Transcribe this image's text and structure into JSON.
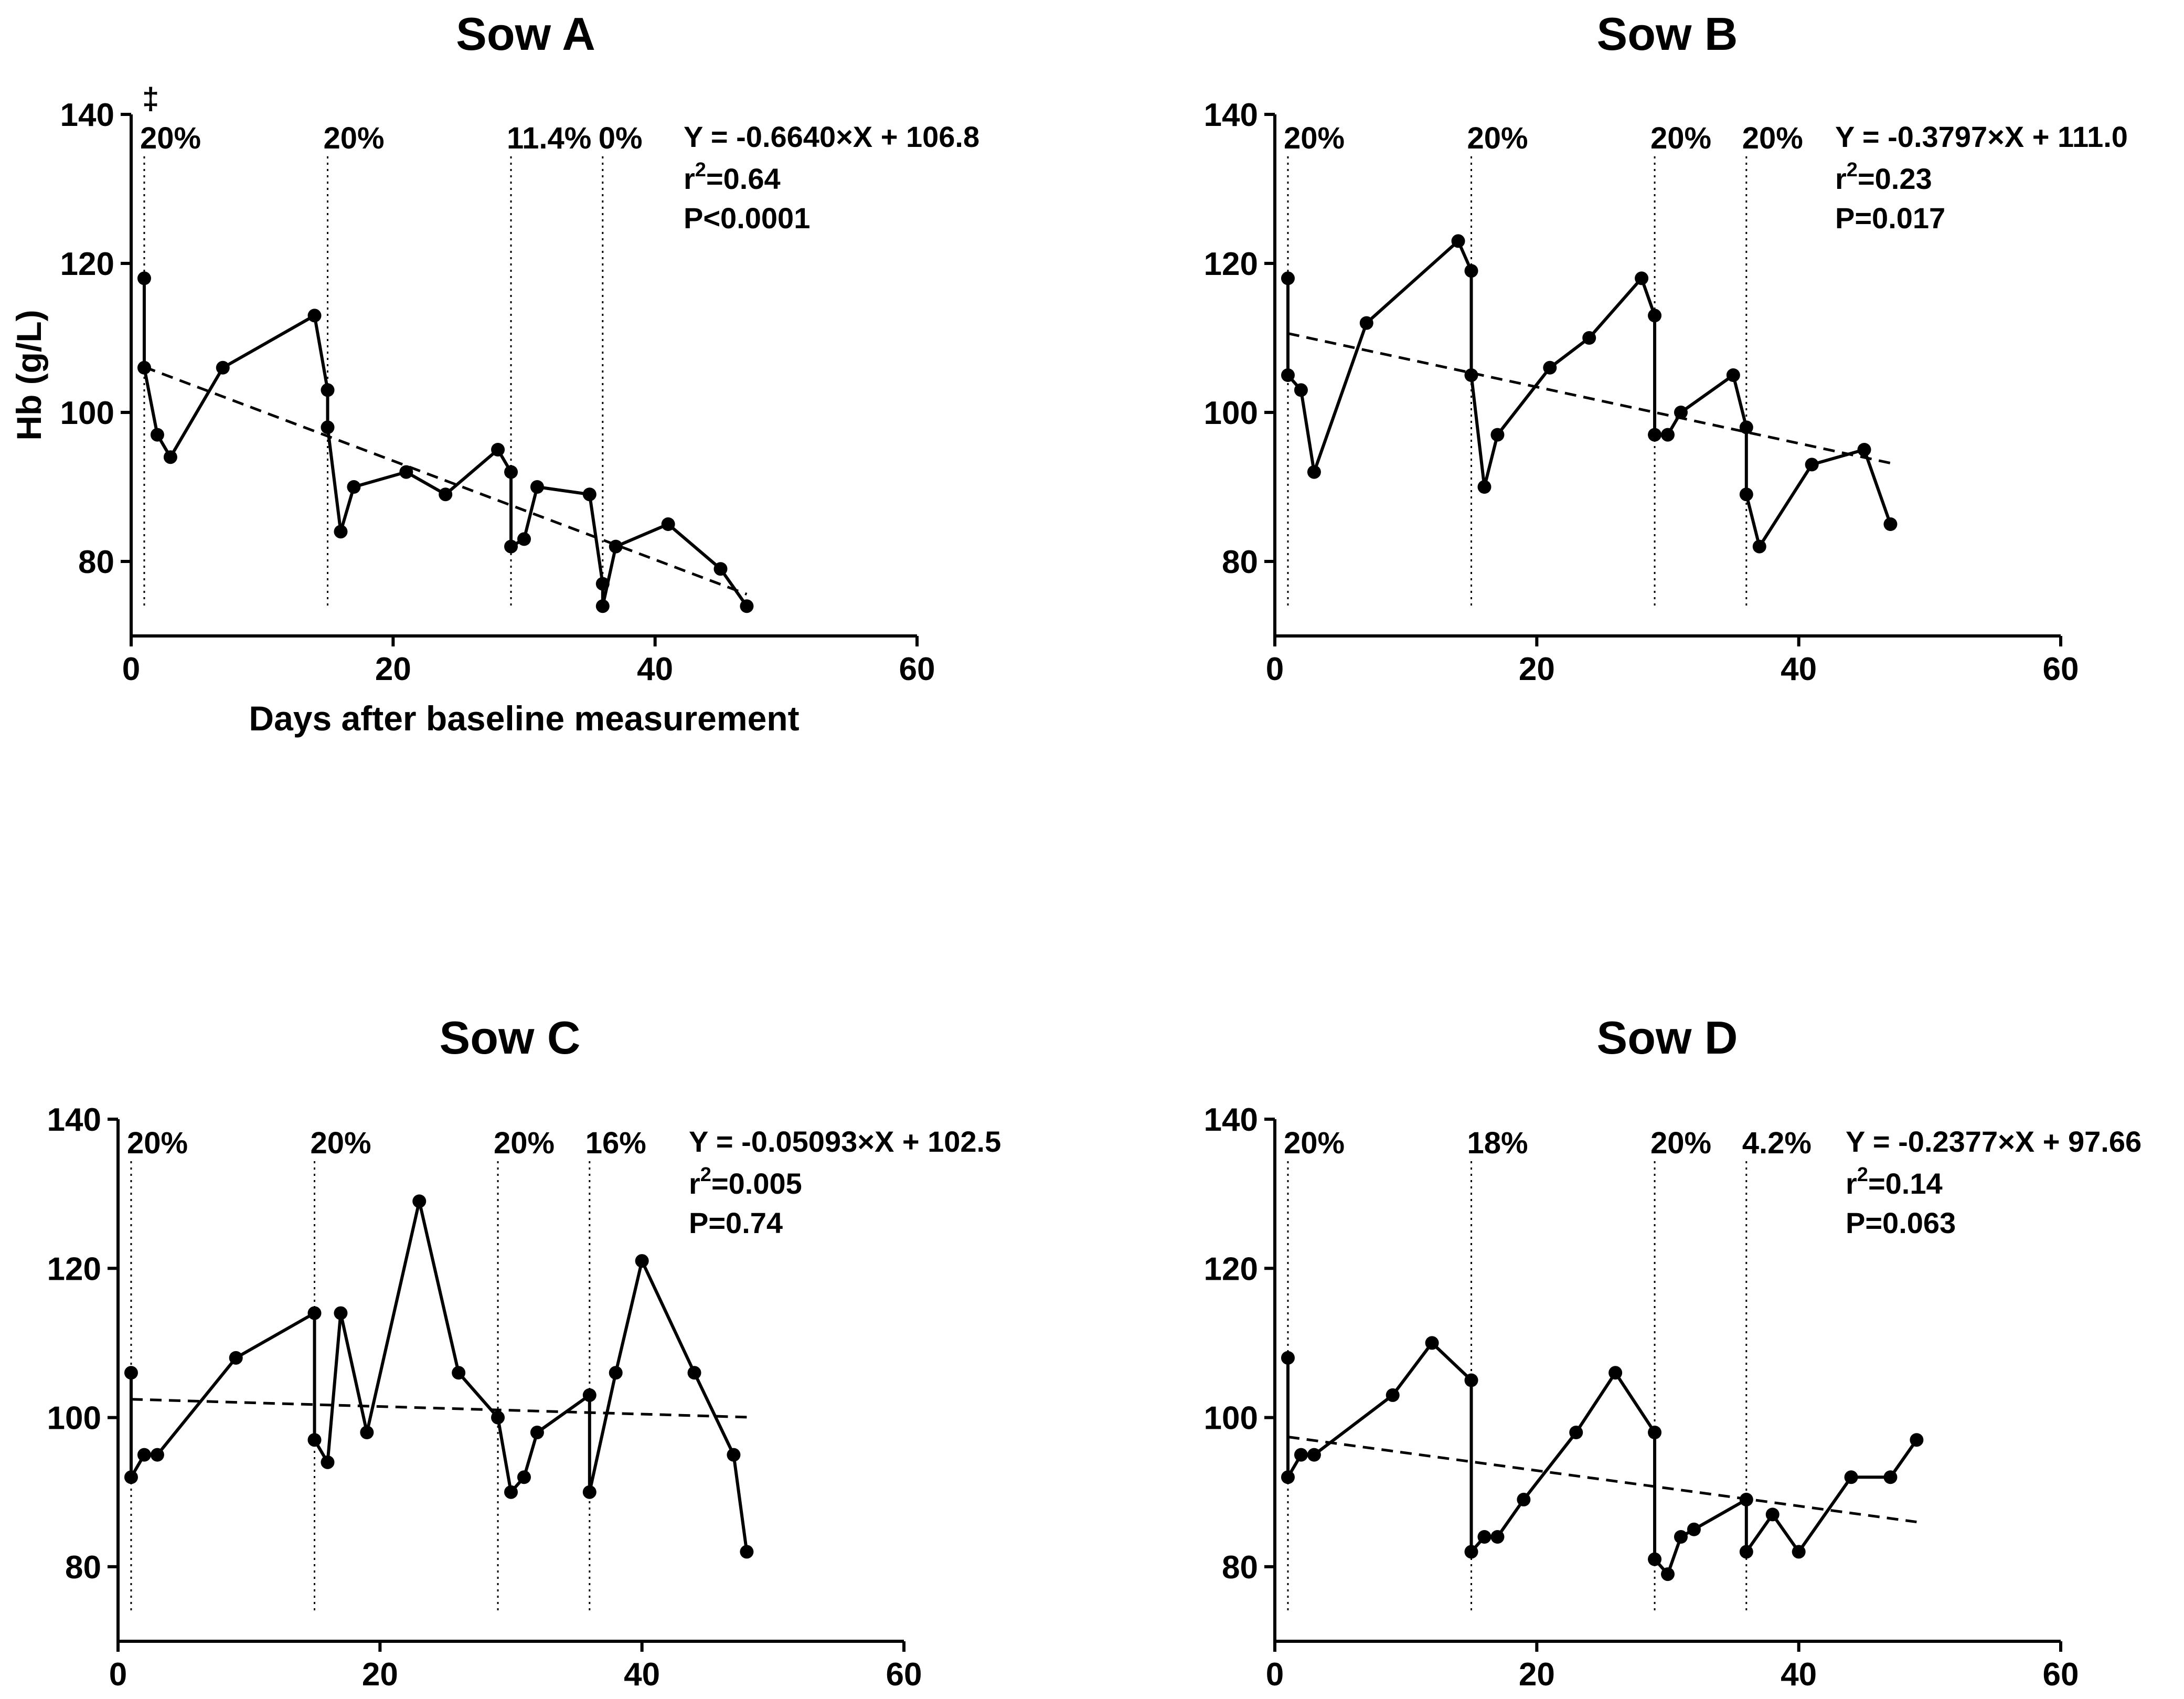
{
  "chart_data": [
    {
      "type": "line",
      "title": "Sow A",
      "xlabel": "Days after baseline measurement",
      "ylabel": "Hb (g/L)",
      "xlim": [
        0,
        60
      ],
      "ylim": [
        70,
        140
      ],
      "xticks": [
        "0",
        "20",
        "40",
        "60"
      ],
      "yticks": [
        "80",
        "100",
        "120",
        "140"
      ],
      "x": [
        1,
        1,
        2,
        3,
        7,
        14,
        15,
        15,
        16,
        17,
        21,
        24,
        28,
        29,
        29,
        30,
        31,
        35,
        36,
        36,
        37,
        41,
        45,
        47
      ],
      "y": [
        118,
        106,
        97,
        94,
        106,
        113,
        103,
        98,
        84,
        90,
        92,
        89,
        95,
        92,
        82,
        83,
        90,
        89,
        77,
        74,
        82,
        85,
        79,
        74
      ],
      "trend": {
        "x": [
          1,
          47
        ],
        "y": [
          106.1,
          75.6
        ]
      },
      "markers": [
        {
          "day": 1,
          "label": "20%",
          "symbol": "‡"
        },
        {
          "day": 15,
          "label": "20%"
        },
        {
          "day": 29,
          "label": "11.4%"
        },
        {
          "day": 36,
          "label": "0%"
        }
      ],
      "equation": "Y = -0.6640×X + 106.8",
      "r2_prefix": "r",
      "r2_sup": "2",
      "r2_value": "=0.64",
      "p_value": "P<0.0001"
    },
    {
      "type": "line",
      "title": "Sow B",
      "xlabel": "",
      "ylabel": "",
      "xlim": [
        0,
        60
      ],
      "ylim": [
        70,
        140
      ],
      "xticks": [
        "0",
        "20",
        "40",
        "60"
      ],
      "yticks": [
        "80",
        "100",
        "120",
        "140"
      ],
      "x": [
        1,
        1,
        2,
        3,
        7,
        14,
        15,
        15,
        16,
        17,
        21,
        24,
        28,
        29,
        29,
        30,
        31,
        35,
        36,
        36,
        37,
        41,
        45,
        47
      ],
      "y": [
        118,
        105,
        103,
        92,
        112,
        123,
        119,
        105,
        90,
        97,
        106,
        110,
        118,
        113,
        97,
        97,
        100,
        105,
        98,
        89,
        82,
        93,
        95,
        85
      ],
      "trend": {
        "x": [
          1,
          47
        ],
        "y": [
          110.6,
          93.2
        ]
      },
      "markers": [
        {
          "day": 1,
          "label": "20%"
        },
        {
          "day": 15,
          "label": "20%"
        },
        {
          "day": 29,
          "label": "20%"
        },
        {
          "day": 36,
          "label": "20%"
        }
      ],
      "equation": "Y = -0.3797×X + 111.0",
      "r2_prefix": "r",
      "r2_sup": "2",
      "r2_value": "=0.23",
      "p_value": "P=0.017"
    },
    {
      "type": "line",
      "title": "Sow C",
      "xlabel": "",
      "ylabel": "",
      "xlim": [
        0,
        60
      ],
      "ylim": [
        70,
        140
      ],
      "xticks": [
        "0",
        "20",
        "40",
        "60"
      ],
      "yticks": [
        "80",
        "100",
        "120",
        "140"
      ],
      "x": [
        1,
        1,
        2,
        3,
        9,
        15,
        15,
        16,
        17,
        19,
        23,
        26,
        29,
        30,
        31,
        32,
        36,
        36,
        38,
        40,
        44,
        47,
        48
      ],
      "y": [
        106,
        92,
        95,
        95,
        108,
        114,
        97,
        94,
        114,
        98,
        129,
        106,
        100,
        90,
        92,
        98,
        103,
        90,
        106,
        121,
        106,
        95,
        82
      ],
      "trend": {
        "x": [
          1,
          48
        ],
        "y": [
          102.45,
          100.05
        ]
      },
      "markers": [
        {
          "day": 1,
          "label": "20%"
        },
        {
          "day": 15,
          "label": "20%"
        },
        {
          "day": 29,
          "label": "20%"
        },
        {
          "day": 36,
          "label": "16%"
        }
      ],
      "equation": "Y = -0.05093×X + 102.5",
      "r2_prefix": "r",
      "r2_sup": "2",
      "r2_value": "=0.005",
      "p_value": "P=0.74"
    },
    {
      "type": "line",
      "title": "Sow D",
      "xlabel": "",
      "ylabel": "",
      "xlim": [
        0,
        60
      ],
      "ylim": [
        70,
        140
      ],
      "xticks": [
        "0",
        "20",
        "40",
        "60"
      ],
      "yticks": [
        "80",
        "100",
        "120",
        "140"
      ],
      "x": [
        1,
        1,
        2,
        3,
        9,
        12,
        15,
        15,
        16,
        17,
        19,
        23,
        26,
        29,
        29,
        30,
        31,
        32,
        36,
        36,
        38,
        40,
        44,
        47,
        49
      ],
      "y": [
        108,
        92,
        95,
        95,
        103,
        110,
        105,
        82,
        84,
        84,
        89,
        98,
        106,
        98,
        81,
        79,
        84,
        85,
        89,
        82,
        87,
        82,
        92,
        92,
        97
      ],
      "trend": {
        "x": [
          1,
          49
        ],
        "y": [
          97.4,
          86.0
        ]
      },
      "markers": [
        {
          "day": 1,
          "label": "20%"
        },
        {
          "day": 15,
          "label": "18%"
        },
        {
          "day": 29,
          "label": "20%"
        },
        {
          "day": 36,
          "label": "4.2%"
        }
      ],
      "equation": "Y = -0.2377×X + 97.66",
      "r2_prefix": "r",
      "r2_sup": "2",
      "r2_value": "=0.14",
      "p_value": "P=0.063"
    }
  ]
}
